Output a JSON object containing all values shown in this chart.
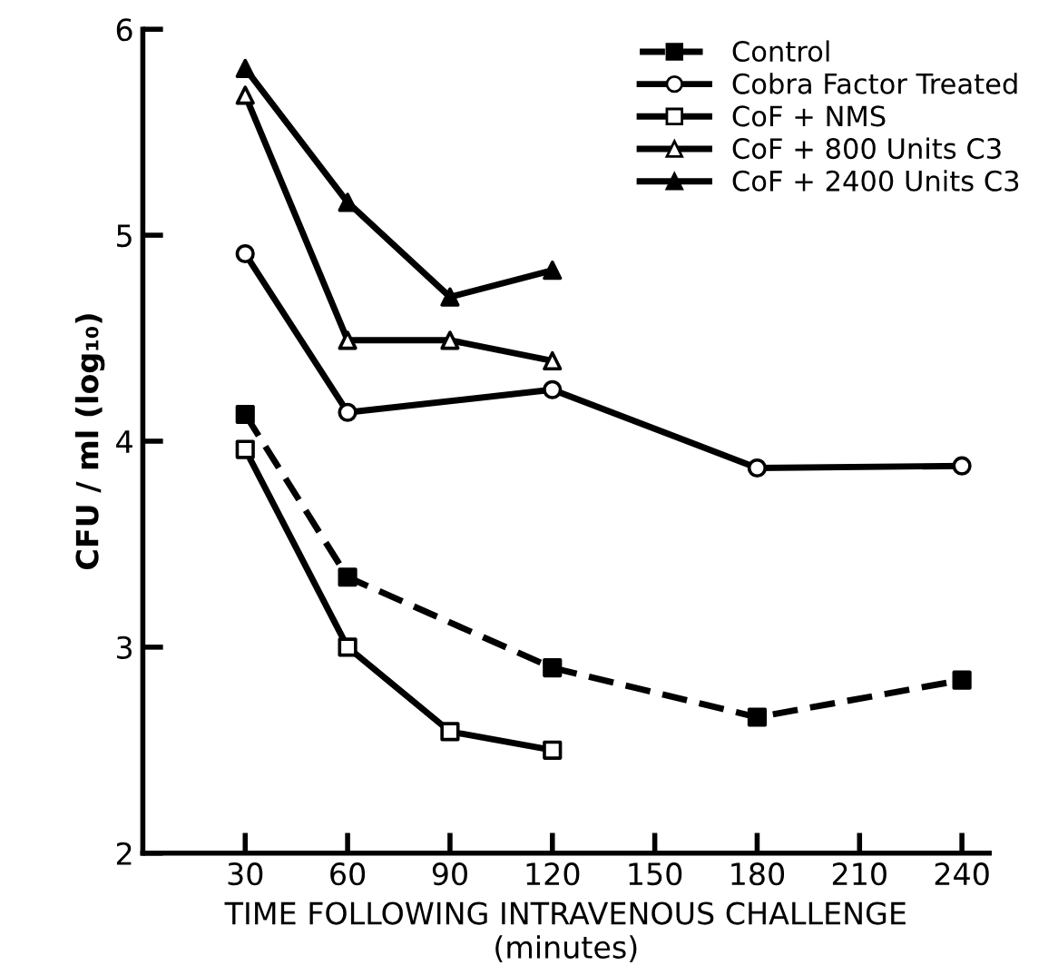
{
  "chart_data": {
    "type": "line",
    "xlabel": "TIME FOLLOWING INTRAVENOUS CHALLENGE\n(minutes)",
    "ylabel": "CFU / ml (log₁₀)",
    "xlim": [
      0,
      248
    ],
    "xticks": [
      30,
      60,
      90,
      120,
      150,
      180,
      210,
      240
    ],
    "ylim": [
      2,
      6
    ],
    "yticks": [
      2,
      3,
      4,
      5,
      6
    ],
    "grid": false,
    "legend": "top right",
    "series": [
      {
        "name": "Control",
        "color": "#000000",
        "colors": [
          "#000000",
          "#000000",
          "#000000",
          "#000000",
          "#000000"
        ],
        "marker": "square",
        "line_style": "dashed",
        "x": [
          30,
          60,
          120,
          180,
          240
        ],
        "values": [
          4.13,
          3.34,
          2.9,
          2.66,
          2.84
        ]
      },
      {
        "name": "Cobra Factor Treated",
        "color": "#000000",
        "colors": [
          "#ffffff",
          "#ffffff",
          "#ffffff",
          "#ffffff",
          "#ffffff"
        ],
        "marker": "circle",
        "line_style": "solid",
        "x": [
          30,
          60,
          120,
          180,
          240
        ],
        "values": [
          4.91,
          4.14,
          4.25,
          3.87,
          3.88
        ]
      },
      {
        "name": "CoF + NMS",
        "color": "#000000",
        "colors": [
          "#ffffff",
          "#ffffff",
          "#ffffff",
          "#ffffff"
        ],
        "marker": "square",
        "line_style": "solid",
        "x": [
          30,
          60,
          90,
          120
        ],
        "values": [
          3.96,
          3.0,
          2.59,
          2.5
        ]
      },
      {
        "name": "CoF + 800 Units C3",
        "color": "#000000",
        "colors": [
          "#ffffff",
          "#ffffff",
          "#ffffff",
          "#ffffff"
        ],
        "marker": "triangle",
        "line_style": "solid",
        "x": [
          30,
          60,
          90,
          120
        ],
        "values": [
          5.68,
          4.49,
          4.49,
          4.39
        ]
      },
      {
        "name": "CoF + 2400 Units C3",
        "color": "#000000",
        "colors": [
          "#000000",
          "#000000",
          "#000000",
          "#000000"
        ],
        "marker": "triangle",
        "line_style": "solid",
        "x": [
          30,
          60,
          90,
          120
        ],
        "values": [
          5.81,
          5.16,
          4.7,
          4.83
        ]
      }
    ]
  }
}
